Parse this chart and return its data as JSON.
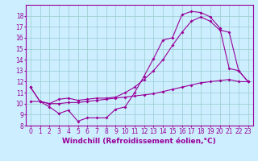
{
  "background_color": "#cceeff",
  "line_color": "#990099",
  "grid_color": "#99cccc",
  "xlabel": "Windchill (Refroidissement éolien,°C)",
  "xlabel_fontsize": 6.5,
  "tick_fontsize": 5.5,
  "xlim": [
    -0.5,
    23.5
  ],
  "ylim": [
    8,
    19
  ],
  "yticks": [
    8,
    9,
    10,
    11,
    12,
    13,
    14,
    15,
    16,
    17,
    18
  ],
  "xticks": [
    0,
    1,
    2,
    3,
    4,
    5,
    6,
    7,
    8,
    9,
    10,
    11,
    12,
    13,
    14,
    15,
    16,
    17,
    18,
    19,
    20,
    21,
    22,
    23
  ],
  "series1_x": [
    0,
    1,
    2,
    3,
    4,
    5,
    6,
    7,
    8,
    9,
    10,
    11,
    12,
    13,
    14,
    15,
    16,
    17,
    18,
    19,
    20,
    21,
    22,
    23
  ],
  "series1_y": [
    11.5,
    10.2,
    9.7,
    9.1,
    9.4,
    8.4,
    8.7,
    8.7,
    8.7,
    9.5,
    9.7,
    11.0,
    12.5,
    14.1,
    15.8,
    16.0,
    18.1,
    18.4,
    18.3,
    17.9,
    16.9,
    13.2,
    13.0,
    12.0
  ],
  "series2_x": [
    0,
    1,
    2,
    3,
    4,
    5,
    6,
    7,
    8,
    9,
    10,
    11,
    12,
    13,
    14,
    15,
    16,
    17,
    18,
    19,
    20,
    21,
    22,
    23
  ],
  "series2_y": [
    11.5,
    10.2,
    10.0,
    10.4,
    10.5,
    10.3,
    10.4,
    10.5,
    10.5,
    10.6,
    11.0,
    11.5,
    12.2,
    13.0,
    14.0,
    15.3,
    16.5,
    17.5,
    17.9,
    17.5,
    16.7,
    16.5,
    13.0,
    12.0
  ],
  "series3_x": [
    0,
    1,
    2,
    3,
    4,
    5,
    6,
    7,
    8,
    9,
    10,
    11,
    12,
    13,
    14,
    15,
    16,
    17,
    18,
    19,
    20,
    21,
    22,
    23
  ],
  "series3_y": [
    10.2,
    10.2,
    10.0,
    10.0,
    10.1,
    10.1,
    10.2,
    10.3,
    10.4,
    10.5,
    10.6,
    10.7,
    10.8,
    10.9,
    11.1,
    11.3,
    11.5,
    11.7,
    11.9,
    12.0,
    12.1,
    12.2,
    12.0,
    12.0
  ]
}
